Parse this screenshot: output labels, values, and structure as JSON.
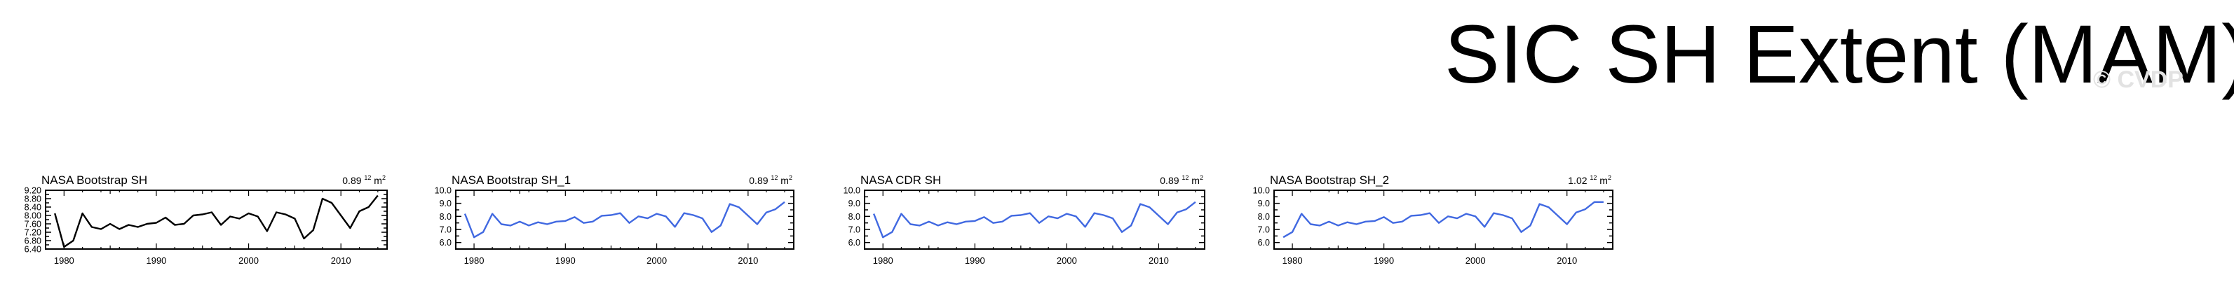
{
  "title": "SIC SH Extent (MAM)",
  "watermark": "© CVDP",
  "colors": {
    "black": "#000000",
    "blue": "#4169e1"
  },
  "chart_data": [
    {
      "type": "line",
      "title": "NASA Bootstrap SH",
      "value_label": {
        "value": "0.89",
        "exponent": "12",
        "unit": "m",
        "unit_exponent": "2"
      },
      "color": "#000000",
      "xlim": [
        1978,
        2015
      ],
      "ylim": [
        6.4,
        9.2
      ],
      "yticks": [
        6.4,
        6.6,
        6.8,
        7.0,
        7.2,
        7.4,
        7.6,
        7.8,
        8.0,
        8.2,
        8.4,
        8.6,
        8.8,
        9.0,
        9.2
      ],
      "ytick_labels": [
        "6.40",
        "6.60",
        "6.80",
        "7.00",
        "7.20",
        "7.40",
        "7.60",
        "7.80",
        "8.00",
        "8.20",
        "8.40",
        "8.60",
        "8.80",
        "9.00",
        "9.20"
      ],
      "ytick_label_step": 2,
      "xticks": [
        1980,
        1990,
        2000,
        2010
      ],
      "xtick_labels": [
        "1980",
        "1990",
        "2000",
        "2010"
      ],
      "x": [
        1979,
        1980,
        1981,
        1982,
        1983,
        1984,
        1985,
        1986,
        1987,
        1988,
        1989,
        1990,
        1991,
        1992,
        1993,
        1994,
        1995,
        1996,
        1997,
        1998,
        1999,
        2000,
        2001,
        2002,
        2003,
        2004,
        2005,
        2006,
        2007,
        2008,
        2009,
        2010,
        2011,
        2012,
        2013,
        2014
      ],
      "y": [
        8.1,
        6.5,
        6.8,
        8.1,
        7.45,
        7.35,
        7.6,
        7.35,
        7.55,
        7.45,
        7.6,
        7.65,
        7.9,
        7.55,
        7.6,
        8.0,
        8.05,
        8.15,
        7.55,
        7.95,
        7.85,
        8.1,
        7.95,
        7.25,
        8.15,
        8.05,
        7.85,
        6.9,
        7.3,
        8.8,
        8.6,
        8.0,
        7.4,
        8.2,
        8.4,
        8.95
      ]
    },
    {
      "type": "line",
      "title": "NASA Bootstrap SH_1",
      "value_label": {
        "value": "0.89",
        "exponent": "12",
        "unit": "m",
        "unit_exponent": "2"
      },
      "color": "#4169e1",
      "xlim": [
        1978,
        2015
      ],
      "ylim": [
        5.5,
        10.0
      ],
      "yticks": [
        6.0,
        6.5,
        7.0,
        7.5,
        8.0,
        8.5,
        9.0,
        9.5,
        10.0
      ],
      "ytick_labels": [
        "6.0",
        "6.5",
        "7.0",
        "7.5",
        "8.0",
        "8.5",
        "9.0",
        "9.5",
        "10.0"
      ],
      "ytick_label_step": 2,
      "xticks": [
        1980,
        1990,
        2000,
        2010
      ],
      "xtick_labels": [
        "1980",
        "1990",
        "2000",
        "2010"
      ],
      "x": [
        1979,
        1980,
        1981,
        1982,
        1983,
        1984,
        1985,
        1986,
        1987,
        1988,
        1989,
        1990,
        1991,
        1992,
        1993,
        1994,
        1995,
        1996,
        1997,
        1998,
        1999,
        2000,
        2001,
        2002,
        2003,
        2004,
        2005,
        2006,
        2007,
        2008,
        2009,
        2010,
        2011,
        2012,
        2013,
        2014
      ],
      "y": [
        8.2,
        6.4,
        6.8,
        8.2,
        7.4,
        7.3,
        7.6,
        7.3,
        7.55,
        7.4,
        7.6,
        7.65,
        7.95,
        7.5,
        7.6,
        8.05,
        8.1,
        8.25,
        7.5,
        8.0,
        7.85,
        8.2,
        8.0,
        7.2,
        8.25,
        8.1,
        7.85,
        6.8,
        7.3,
        8.95,
        8.7,
        8.05,
        7.4,
        8.3,
        8.55,
        9.1
      ]
    },
    {
      "type": "line",
      "title": "NASA CDR SH",
      "value_label": {
        "value": "0.89",
        "exponent": "12",
        "unit": "m",
        "unit_exponent": "2"
      },
      "color": "#4169e1",
      "xlim": [
        1978,
        2015
      ],
      "ylim": [
        5.5,
        10.0
      ],
      "yticks": [
        6.0,
        6.5,
        7.0,
        7.5,
        8.0,
        8.5,
        9.0,
        9.5,
        10.0
      ],
      "ytick_labels": [
        "6.0",
        "6.5",
        "7.0",
        "7.5",
        "8.0",
        "8.5",
        "9.0",
        "9.5",
        "10.0"
      ],
      "ytick_label_step": 2,
      "xticks": [
        1980,
        1990,
        2000,
        2010
      ],
      "xtick_labels": [
        "1980",
        "1990",
        "2000",
        "2010"
      ],
      "x": [
        1979,
        1980,
        1981,
        1982,
        1983,
        1984,
        1985,
        1986,
        1987,
        1988,
        1989,
        1990,
        1991,
        1992,
        1993,
        1994,
        1995,
        1996,
        1997,
        1998,
        1999,
        2000,
        2001,
        2002,
        2003,
        2004,
        2005,
        2006,
        2007,
        2008,
        2009,
        2010,
        2011,
        2012,
        2013,
        2014
      ],
      "y": [
        8.2,
        6.4,
        6.8,
        8.2,
        7.4,
        7.3,
        7.6,
        7.3,
        7.55,
        7.4,
        7.6,
        7.65,
        7.95,
        7.5,
        7.6,
        8.05,
        8.1,
        8.25,
        7.5,
        8.0,
        7.85,
        8.2,
        8.0,
        7.2,
        8.25,
        8.1,
        7.85,
        6.8,
        7.3,
        8.95,
        8.7,
        8.05,
        7.4,
        8.3,
        8.55,
        9.1
      ]
    },
    {
      "type": "line",
      "title": "NASA Bootstrap SH_2",
      "value_label": {
        "value": "1.02",
        "exponent": "12",
        "unit": "m",
        "unit_exponent": "2"
      },
      "color": "#4169e1",
      "xlim": [
        1978,
        2015
      ],
      "ylim": [
        5.5,
        10.0
      ],
      "yticks": [
        6.0,
        6.5,
        7.0,
        7.5,
        8.0,
        8.5,
        9.0,
        9.5,
        10.0
      ],
      "ytick_labels": [
        "6.0",
        "6.5",
        "7.0",
        "7.5",
        "8.0",
        "8.5",
        "9.0",
        "9.5",
        "10.0"
      ],
      "ytick_label_step": 2,
      "xticks": [
        1980,
        1990,
        2000,
        2010
      ],
      "xtick_labels": [
        "1980",
        "1990",
        "2000",
        "2010"
      ],
      "x": [
        1979,
        1980,
        1981,
        1982,
        1983,
        1984,
        1985,
        1986,
        1987,
        1988,
        1989,
        1990,
        1991,
        1992,
        1993,
        1994,
        1995,
        1996,
        1997,
        1998,
        1999,
        2000,
        2001,
        2002,
        2003,
        2004,
        2005,
        2006,
        2007,
        2008,
        2009,
        2010,
        2011,
        2012,
        2013,
        2014
      ],
      "y": [
        6.4,
        6.8,
        8.2,
        7.4,
        7.3,
        7.6,
        7.3,
        7.55,
        7.4,
        7.6,
        7.65,
        7.95,
        7.5,
        7.6,
        8.05,
        8.1,
        8.25,
        7.5,
        8.0,
        7.85,
        8.2,
        8.0,
        7.2,
        8.25,
        8.1,
        7.85,
        6.8,
        7.3,
        8.95,
        8.7,
        8.05,
        7.4,
        8.3,
        8.55,
        9.1,
        9.1
      ]
    }
  ]
}
